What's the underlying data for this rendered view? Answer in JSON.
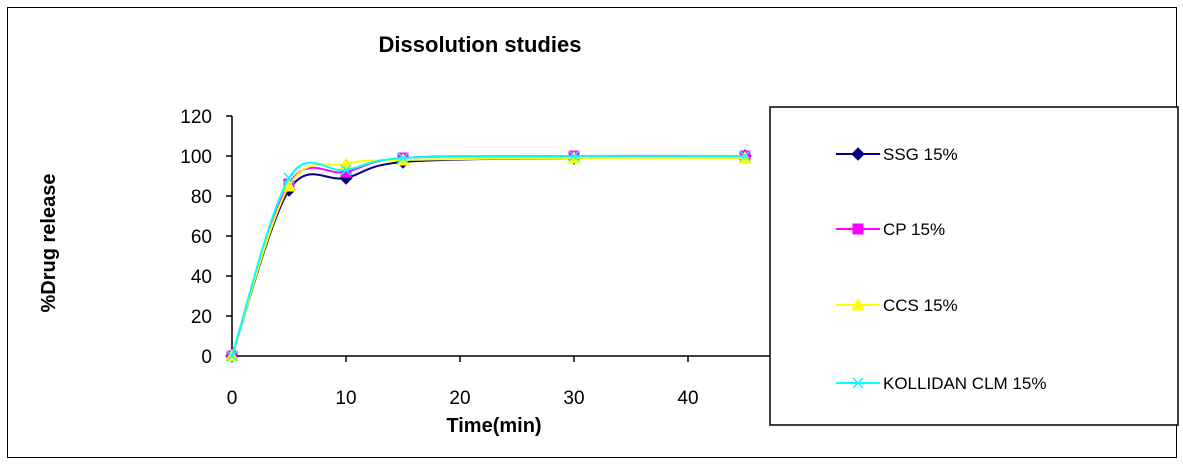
{
  "chart_data": {
    "type": "line",
    "title": "Dissolution studies",
    "xlabel": "Time(min)",
    "ylabel": "%Drug release",
    "xlim": [
      0,
      45
    ],
    "ylim": [
      0,
      120
    ],
    "x_ticks": [
      0,
      10,
      20,
      30,
      40
    ],
    "y_ticks": [
      0,
      20,
      40,
      60,
      80,
      100,
      120
    ],
    "grid": false,
    "legend_position": "right",
    "x": [
      0,
      5,
      10,
      15,
      30,
      45
    ],
    "series": [
      {
        "name": "SSG 15%",
        "values": [
          0,
          83,
          89,
          97,
          99,
          100
        ],
        "color": "#000080",
        "marker": "diamond"
      },
      {
        "name": "CP 15%",
        "values": [
          0,
          86,
          92,
          99,
          100,
          100
        ],
        "color": "#FF00FF",
        "marker": "square"
      },
      {
        "name": "CCS 15%",
        "values": [
          0,
          85,
          96,
          98,
          99,
          99
        ],
        "color": "#FFFF00",
        "marker": "triangle"
      },
      {
        "name": "KOLLIDAN CLM 15%",
        "values": [
          0,
          89,
          93,
          99,
          100,
          100
        ],
        "color": "#00FFFF",
        "marker": "star"
      }
    ]
  }
}
